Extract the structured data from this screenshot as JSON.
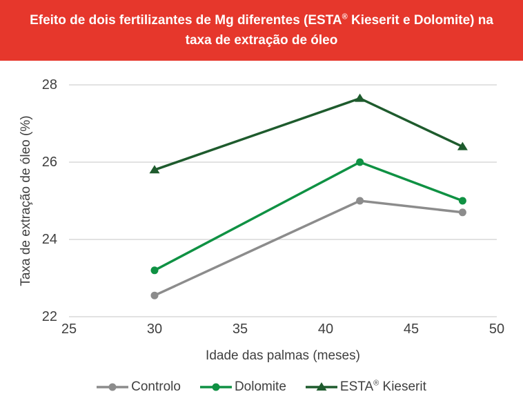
{
  "banner": {
    "title": "Efeito de dois fertilizantes de Mg diferentes (ESTA® Kieserit e Dolomite) na taxa de extração de óleo",
    "bg_color": "#e6372c",
    "text_color": "#ffffff"
  },
  "chart_data": {
    "type": "line",
    "title": "Efeito de dois fertilizantes de Mg diferentes (ESTA® Kieserit e Dolomite) na taxa de extração de óleo",
    "xlabel": "Idade das palmas (meses)",
    "ylabel": "Taxa de extração de óleo (%)",
    "xlim": [
      25,
      50
    ],
    "ylim": [
      22,
      28
    ],
    "xticks": [
      25,
      30,
      35,
      40,
      45,
      50
    ],
    "yticks": [
      22,
      24,
      26,
      28
    ],
    "grid": "horizontal-only",
    "legend_position": "bottom",
    "x": [
      30,
      42,
      48
    ],
    "series": [
      {
        "name": "Controlo",
        "marker": "circle",
        "color": "#8c8c8c",
        "values": [
          22.55,
          25.0,
          24.7
        ]
      },
      {
        "name": "Dolomite",
        "marker": "circle",
        "color": "#0f9143",
        "values": [
          23.2,
          26.0,
          25.0
        ]
      },
      {
        "name": "ESTA® Kieserit",
        "marker": "triangle",
        "color": "#1e5b2d",
        "values": [
          25.8,
          27.65,
          26.4
        ]
      }
    ],
    "colors": {
      "grid": "#d9d9d9",
      "axis_text": "#3f3f3f"
    }
  }
}
